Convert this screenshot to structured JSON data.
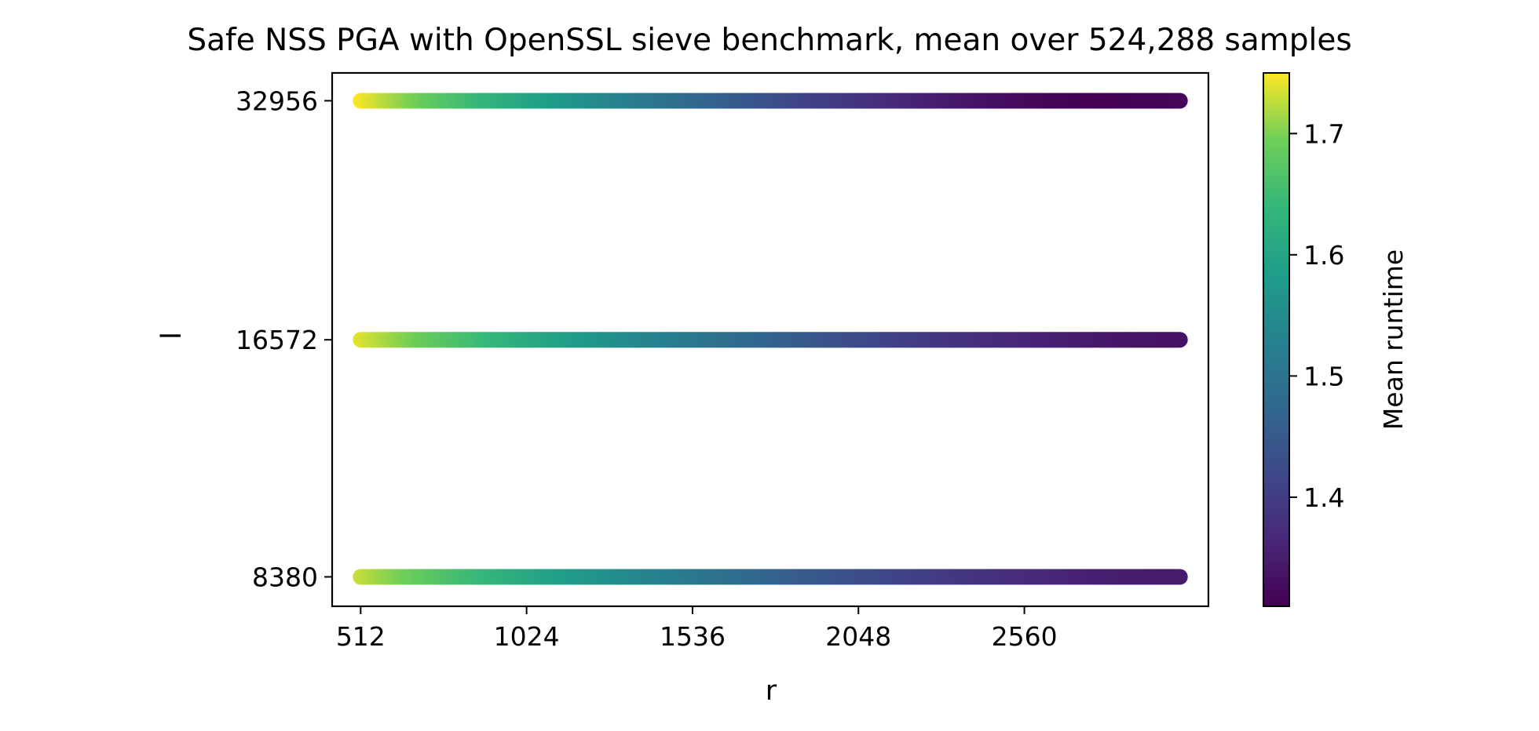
{
  "chart_data": {
    "type": "scatter",
    "title": "Safe NSS PGA with OpenSSL sieve benchmark, mean over 524,288 samples",
    "xlabel": "r",
    "ylabel": "l",
    "x_ticks": [
      512,
      1024,
      1536,
      2048,
      2560
    ],
    "y_ticks": [
      "8380",
      "16572",
      "32956"
    ],
    "x_range": [
      512,
      3040
    ],
    "y_scale": "log",
    "grid": false,
    "colorbar": {
      "label": "Mean runtime",
      "colormap": "viridis",
      "range": [
        1.31,
        1.75
      ],
      "ticks": [
        1.4,
        1.5,
        1.6,
        1.7
      ]
    },
    "series": [
      {
        "l": 32956,
        "runtime_start": 1.75,
        "runtime_end": 1.31,
        "min_runtime": 1.31,
        "min_at_r": 2820
      },
      {
        "l": 16572,
        "runtime_start": 1.74,
        "runtime_end": 1.335,
        "min_runtime": 1.335,
        "min_at_r": 3040
      },
      {
        "l": 8380,
        "runtime_start": 1.73,
        "runtime_end": 1.345,
        "min_runtime": 1.345,
        "min_at_r": 3040
      }
    ]
  }
}
